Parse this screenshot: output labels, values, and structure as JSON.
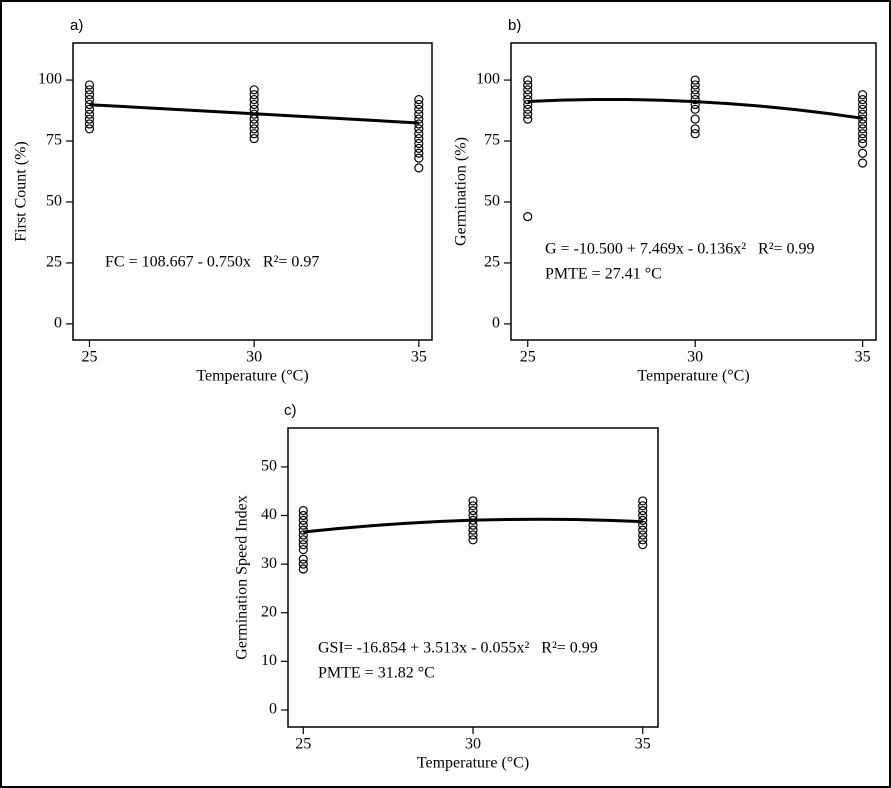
{
  "chart_data": [
    {
      "type": "scatter",
      "label": "a)",
      "xlabel": "Temperature (°C)",
      "ylabel": "First Count (%)",
      "annotations": [
        "FC = 108.667 - 0.750x   R²= 0.97"
      ],
      "x": [
        25,
        25,
        25,
        25,
        25,
        25,
        25,
        25,
        25,
        25,
        30,
        30,
        30,
        30,
        30,
        30,
        30,
        30,
        30,
        30,
        30,
        35,
        35,
        35,
        35,
        35,
        35,
        35,
        35,
        35,
        35,
        35,
        35,
        35,
        35
      ],
      "y": [
        80,
        82,
        84,
        86,
        88,
        90,
        92,
        94,
        96,
        98,
        76,
        78,
        80,
        82,
        84,
        86,
        88,
        90,
        92,
        94,
        96,
        64,
        68,
        70,
        72,
        74,
        76,
        78,
        80,
        82,
        84,
        86,
        88,
        90,
        92
      ],
      "fit": {
        "x": [
          25,
          30,
          35
        ],
        "y": [
          89.9,
          86.2,
          82.4
        ]
      },
      "xlim": [
        24.5,
        35.4
      ],
      "xticks": [
        25,
        30,
        35
      ],
      "ylim": [
        -6.6,
        115.2
      ],
      "yticks": [
        0,
        25,
        50,
        75,
        100
      ]
    },
    {
      "type": "scatter",
      "label": "b)",
      "xlabel": "Temperature (°C)",
      "ylabel": "Germination (%)",
      "annotations": [
        "G = -10.500 + 7.469x - 0.136x²   R²= 0.99",
        "PMTE = 27.41 °C"
      ],
      "x": [
        25,
        25,
        25,
        25,
        25,
        25,
        25,
        25,
        25,
        25,
        30,
        30,
        30,
        30,
        30,
        30,
        30,
        30,
        30,
        30,
        35,
        35,
        35,
        35,
        35,
        35,
        35,
        35,
        35,
        35,
        35,
        35,
        35
      ],
      "y": [
        44,
        84,
        86,
        88,
        90,
        92,
        94,
        96,
        98,
        100,
        78,
        80,
        84,
        88,
        90,
        92,
        94,
        96,
        98,
        100,
        66,
        70,
        74,
        76,
        78,
        80,
        82,
        84,
        86,
        88,
        90,
        92,
        94
      ],
      "fit": {
        "x": [
          25,
          26,
          27,
          28,
          29,
          30,
          31,
          32,
          33,
          34,
          35
        ],
        "y": [
          91.23,
          91.76,
          92.02,
          92.01,
          91.73,
          91.17,
          90.34,
          89.24,
          87.87,
          86.23,
          84.32
        ]
      },
      "xlim": [
        24.5,
        35.4
      ],
      "xticks": [
        25,
        30,
        35
      ],
      "ylim": [
        -6.6,
        115.2
      ],
      "yticks": [
        0,
        25,
        50,
        75,
        100
      ]
    },
    {
      "type": "scatter",
      "label": "c)",
      "xlabel": "Temperature (°C)",
      "ylabel": "Germination Speed Index",
      "annotations": [
        "GSI= -16.854 + 3.513x - 0.055x²   R²= 0.99",
        "PMTE = 31.82 °C"
      ],
      "x": [
        25,
        25,
        25,
        25,
        25,
        25,
        25,
        25,
        25,
        25,
        25,
        25,
        30,
        30,
        30,
        30,
        30,
        30,
        30,
        30,
        30,
        35,
        35,
        35,
        35,
        35,
        35,
        35,
        35,
        35,
        35
      ],
      "y": [
        29,
        30,
        31,
        33,
        34,
        35,
        36,
        37,
        38,
        39,
        40,
        41,
        35,
        36,
        37,
        38,
        39,
        40,
        41,
        42,
        43,
        34,
        35,
        36,
        37,
        38,
        39,
        40,
        41,
        42,
        43
      ],
      "fit": {
        "x": [
          25,
          26,
          27,
          28,
          29,
          30,
          31,
          32,
          33,
          34,
          35
        ],
        "y": [
          36.6,
          37.3,
          37.9,
          38.39,
          38.77,
          39.04,
          39.19,
          39.24,
          39.18,
          39.01,
          38.73
        ]
      },
      "xlim": [
        24.55,
        35.45
      ],
      "xticks": [
        25,
        30,
        35
      ],
      "ylim": [
        -3.5,
        58
      ],
      "yticks": [
        0,
        10,
        20,
        30,
        40,
        50
      ]
    }
  ]
}
